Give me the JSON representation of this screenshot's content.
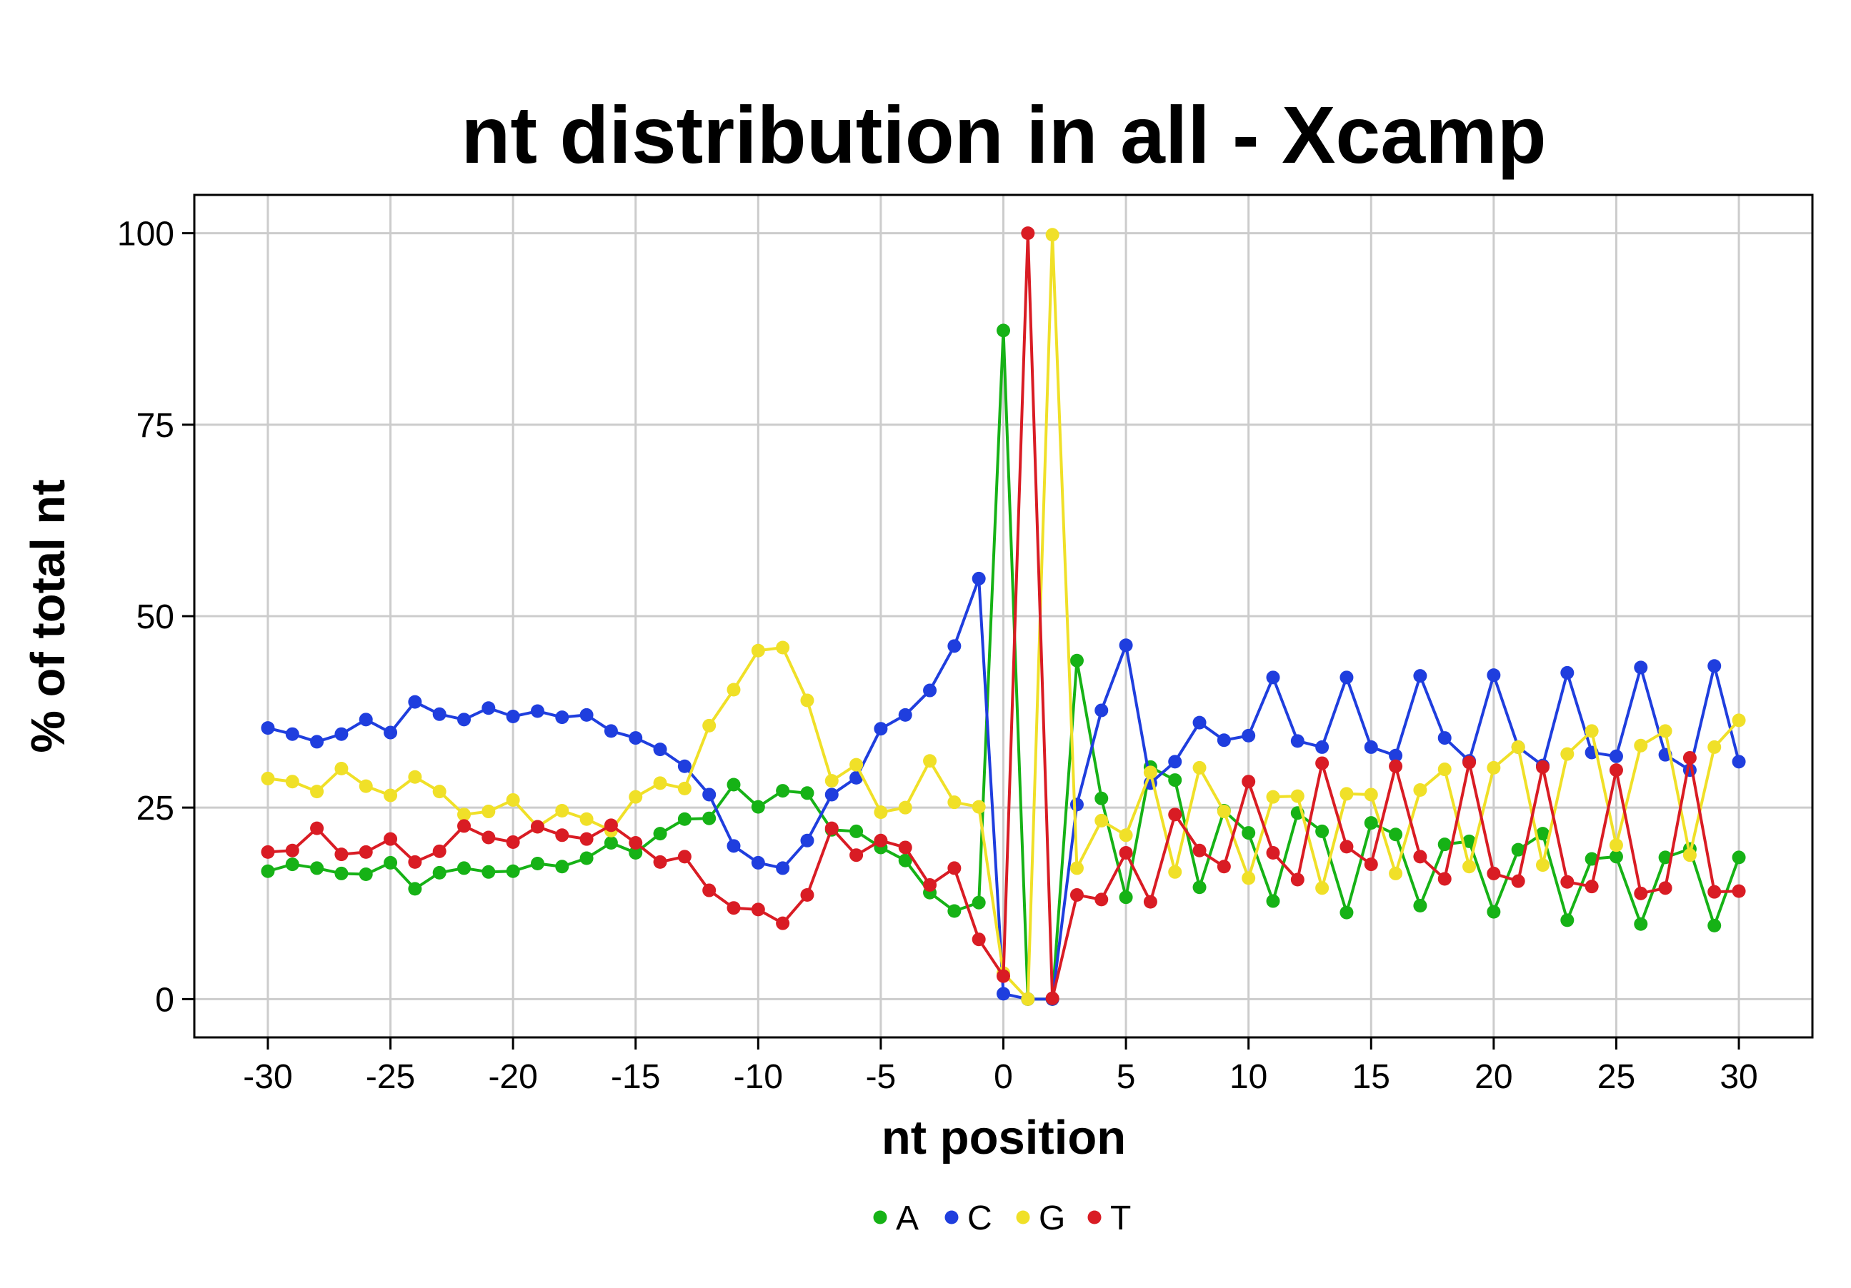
{
  "chart_data": {
    "type": "line",
    "title": "nt distribution in all - Xcamp",
    "xlabel": "nt position",
    "ylabel": "% of total nt",
    "xlim": [
      -33,
      33
    ],
    "ylim": [
      -5,
      105
    ],
    "xticks": [
      -30,
      -25,
      -20,
      -15,
      -10,
      -5,
      0,
      5,
      10,
      15,
      20,
      25,
      30
    ],
    "xtick_labels": [
      "-30",
      "-25",
      "-20",
      "-15",
      "-10",
      "-5",
      "0",
      "5",
      "10",
      "15",
      "20",
      "25",
      "30"
    ],
    "yticks": [
      0,
      25,
      50,
      75,
      100
    ],
    "ytick_labels": [
      "0",
      "25",
      "50",
      "75",
      "100"
    ],
    "grid": true,
    "legend_position": "bottom",
    "x": [
      -30,
      -29,
      -28,
      -27,
      -26,
      -25,
      -24,
      -23,
      -22,
      -21,
      -20,
      -19,
      -18,
      -17,
      -16,
      -15,
      -14,
      -13,
      -12,
      -11,
      -10,
      -9,
      -8,
      -7,
      -6,
      -5,
      -4,
      -3,
      -2,
      -1,
      0,
      1,
      2,
      3,
      4,
      5,
      6,
      7,
      8,
      9,
      10,
      11,
      12,
      13,
      14,
      15,
      16,
      17,
      18,
      19,
      20,
      21,
      22,
      23,
      24,
      25,
      26,
      27,
      28,
      29,
      30
    ],
    "series": [
      {
        "name": "A",
        "color": "#16b216",
        "values": [
          16.7,
          17.6,
          17.1,
          16.4,
          16.3,
          17.8,
          14.4,
          16.5,
          17.1,
          16.6,
          16.7,
          17.7,
          17.3,
          18.4,
          20.4,
          19.1,
          21.6,
          23.5,
          23.6,
          28.0,
          25.1,
          27.2,
          26.9,
          22.1,
          21.9,
          19.8,
          18.1,
          13.9,
          11.5,
          12.6,
          87.3,
          0.0,
          0.0,
          44.2,
          26.2,
          13.3,
          30.3,
          28.6,
          14.6,
          24.6,
          21.7,
          12.8,
          24.3,
          21.9,
          11.3,
          23.0,
          21.5,
          12.2,
          20.2,
          20.6,
          11.4,
          19.5,
          21.6,
          10.3,
          18.3,
          18.6,
          9.8,
          18.5,
          19.6,
          9.6,
          18.5
        ]
      },
      {
        "name": "C",
        "color": "#1f3ede",
        "values": [
          35.4,
          34.6,
          33.6,
          34.6,
          36.5,
          34.8,
          38.8,
          37.2,
          36.5,
          38.0,
          36.9,
          37.6,
          36.8,
          37.1,
          35.0,
          34.1,
          32.6,
          30.4,
          26.7,
          20.0,
          17.8,
          17.1,
          20.7,
          26.7,
          28.9,
          35.3,
          37.1,
          40.3,
          46.1,
          54.9,
          0.7,
          0.0,
          0.0,
          25.4,
          37.7,
          46.2,
          28.2,
          31.0,
          36.1,
          33.8,
          34.4,
          42.0,
          33.7,
          32.9,
          42.0,
          32.9,
          31.8,
          42.2,
          34.1,
          31.1,
          42.3,
          32.9,
          30.5,
          42.6,
          32.2,
          31.7,
          43.3,
          31.9,
          29.9,
          43.5,
          31.0
        ]
      },
      {
        "name": "G",
        "color": "#f0e028",
        "values": [
          28.8,
          28.4,
          27.1,
          30.1,
          27.8,
          26.6,
          29.0,
          27.1,
          24.1,
          24.5,
          26.0,
          22.5,
          24.6,
          23.5,
          22.0,
          26.4,
          28.2,
          27.5,
          35.7,
          40.4,
          45.5,
          45.9,
          39.0,
          28.5,
          30.6,
          24.4,
          25.0,
          31.1,
          25.7,
          25.1,
          3.4,
          0.0,
          99.8,
          17.1,
          23.3,
          21.4,
          29.6,
          16.6,
          30.2,
          24.5,
          15.8,
          26.4,
          26.5,
          14.5,
          26.8,
          26.7,
          16.4,
          27.3,
          30.0,
          17.3,
          30.2,
          32.9,
          17.5,
          32.0,
          35.0,
          20.1,
          33.1,
          35.0,
          18.8,
          32.9,
          36.4
        ]
      },
      {
        "name": "T",
        "color": "#d91c24",
        "values": [
          19.2,
          19.4,
          22.3,
          18.9,
          19.2,
          20.9,
          17.9,
          19.3,
          22.6,
          21.1,
          20.5,
          22.5,
          21.4,
          20.9,
          22.7,
          20.4,
          17.9,
          18.6,
          14.2,
          11.9,
          11.7,
          9.9,
          13.6,
          22.3,
          18.8,
          20.7,
          19.8,
          14.9,
          17.1,
          7.8,
          3.0,
          100.0,
          0.1,
          13.6,
          13.0,
          19.1,
          12.7,
          24.1,
          19.4,
          17.3,
          28.4,
          19.1,
          15.6,
          30.8,
          19.9,
          17.6,
          30.4,
          18.6,
          15.7,
          30.9,
          16.4,
          15.4,
          30.3,
          15.3,
          14.7,
          29.9,
          13.8,
          14.5,
          31.5,
          14.0,
          14.1
        ]
      }
    ]
  }
}
